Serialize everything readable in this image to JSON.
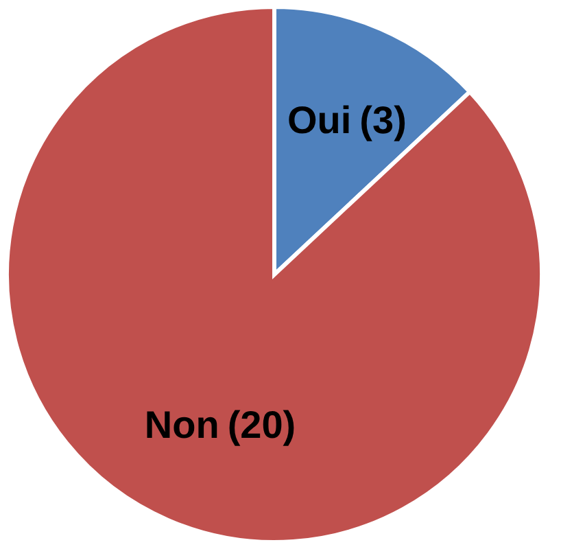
{
  "chart_data": {
    "type": "pie",
    "categories": [
      "Oui",
      "Non"
    ],
    "values": [
      3,
      20
    ],
    "colors": [
      "#4f81bd",
      "#c0504d"
    ],
    "value_labels": [
      "(3)",
      "(20)"
    ],
    "legend": false
  }
}
